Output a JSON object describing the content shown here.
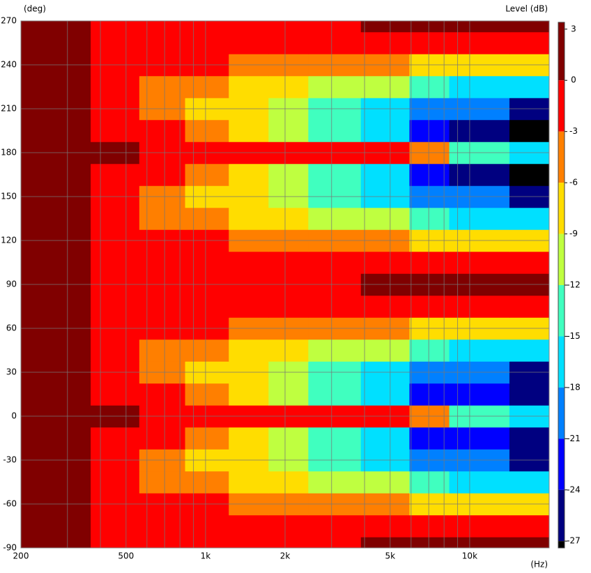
{
  "chart_data": {
    "type": "contour",
    "y_label": "(deg)",
    "x_label": "(Hz)",
    "z_label": "Level  (dB)",
    "log_x": true,
    "grid": true,
    "xlim": [
      200,
      20000
    ],
    "xticks": [
      200,
      500,
      {
        "value": 1000,
        "label": "1k"
      },
      {
        "value": 2000,
        "label": "2k"
      },
      {
        "value": 5000,
        "label": "5k"
      },
      {
        "value": 10000,
        "label": "10k"
      }
    ],
    "xgrid_minor": [
      300,
      400,
      600,
      700,
      800,
      900,
      3000,
      4000,
      6000,
      7000,
      8000,
      9000
    ],
    "ylim": [
      -90,
      270
    ],
    "yticks": [
      -90,
      -60,
      -30,
      0,
      30,
      60,
      90,
      120,
      150,
      180,
      210,
      240,
      270
    ],
    "zlim": [
      -27.4,
      3.4
    ],
    "zticks": [
      3,
      0,
      -3,
      -6,
      -9,
      -12,
      -15,
      -18,
      -21,
      -24,
      -27
    ],
    "colors": [
      "#800000",
      "#ff0000",
      "#ff7f00",
      "#ffdd00",
      "#bfff40",
      "#40ffbf",
      "#00e0ff",
      "#0080ff",
      "#0000ff",
      "#000080",
      "#000000"
    ],
    "x": [
      200,
      300,
      450,
      700,
      1000,
      1500,
      2000,
      3000,
      5000,
      7000,
      10000,
      20000
    ],
    "y": [
      -90,
      -75,
      -60,
      -45,
      -30,
      -15,
      0,
      15,
      30,
      45,
      60,
      75,
      90,
      105,
      120,
      135,
      150,
      165,
      180,
      195,
      210,
      225,
      240,
      255,
      270
    ],
    "z": [
      [
        1,
        0,
        -1,
        -1,
        -1,
        -1,
        -1,
        -1,
        1,
        1,
        0,
        1
      ],
      [
        1,
        0,
        -1,
        -1,
        -2,
        -2,
        -2,
        -2,
        -1,
        -2,
        -2,
        -3
      ],
      [
        1,
        0,
        -1,
        -2,
        -3,
        -4,
        -5,
        -5,
        -6,
        -7,
        -8,
        -9
      ],
      [
        1,
        0,
        -1,
        -4,
        -6,
        -8,
        -9,
        -10,
        -12,
        -15,
        -17,
        -18
      ],
      [
        1,
        0,
        -2,
        -5,
        -7,
        -9,
        -11,
        -13,
        -16,
        -20,
        -21,
        -25
      ],
      [
        1,
        0,
        -1,
        -3,
        -5,
        -8,
        -12,
        -14,
        -18,
        -24,
        -22,
        -25
      ],
      [
        1,
        1,
        0,
        -1,
        -1,
        -2,
        -2,
        -2,
        -3,
        -6,
        -14,
        -18
      ],
      [
        1,
        0,
        -1,
        -3,
        -5,
        -8,
        -12,
        -14,
        -18,
        -24,
        -22,
        -25
      ],
      [
        1,
        0,
        -2,
        -5,
        -7,
        -9,
        -11,
        -13,
        -16,
        -20,
        -21,
        -25
      ],
      [
        1,
        0,
        -1,
        -4,
        -6,
        -8,
        -9,
        -10,
        -12,
        -15,
        -17,
        -18
      ],
      [
        1,
        0,
        -1,
        -2,
        -3,
        -4,
        -5,
        -5,
        -6,
        -7,
        -8,
        -9
      ],
      [
        1,
        0,
        -1,
        -1,
        -2,
        -2,
        -2,
        -2,
        -1,
        -2,
        -2,
        -3
      ],
      [
        1,
        0,
        -1,
        -1,
        -1,
        -1,
        -1,
        -1,
        1,
        1,
        0,
        1
      ],
      [
        1,
        0,
        -1,
        -1,
        -2,
        -2,
        -2,
        -2,
        -1,
        -2,
        -2,
        -3
      ],
      [
        1,
        0,
        -1,
        -2,
        -3,
        -4,
        -5,
        -5,
        -6,
        -7,
        -8,
        -9
      ],
      [
        1,
        0,
        -1,
        -4,
        -6,
        -8,
        -9,
        -10,
        -12,
        -15,
        -17,
        -18
      ],
      [
        1,
        0,
        -2,
        -5,
        -7,
        -9,
        -11,
        -13,
        -16,
        -20,
        -21,
        -25
      ],
      [
        1,
        0,
        -1,
        -3,
        -5,
        -8,
        -12,
        -14,
        -18,
        -24,
        -26,
        -28
      ],
      [
        1,
        1,
        0,
        -1,
        -1,
        -2,
        -2,
        -2,
        -3,
        -6,
        -14,
        -18
      ],
      [
        1,
        0,
        -1,
        -3,
        -5,
        -8,
        -12,
        -14,
        -18,
        -24,
        -26,
        -28
      ],
      [
        1,
        0,
        -2,
        -5,
        -7,
        -9,
        -11,
        -13,
        -16,
        -20,
        -21,
        -25
      ],
      [
        1,
        0,
        -1,
        -4,
        -6,
        -8,
        -9,
        -10,
        -12,
        -15,
        -17,
        -18
      ],
      [
        1,
        0,
        -1,
        -2,
        -3,
        -4,
        -5,
        -5,
        -6,
        -7,
        -8,
        -9
      ],
      [
        1,
        0,
        -1,
        -1,
        -2,
        -2,
        -2,
        -2,
        -1,
        -2,
        -2,
        -3
      ],
      [
        1,
        0,
        -1,
        -1,
        -1,
        -1,
        -1,
        -1,
        1,
        1,
        0,
        1
      ]
    ]
  }
}
